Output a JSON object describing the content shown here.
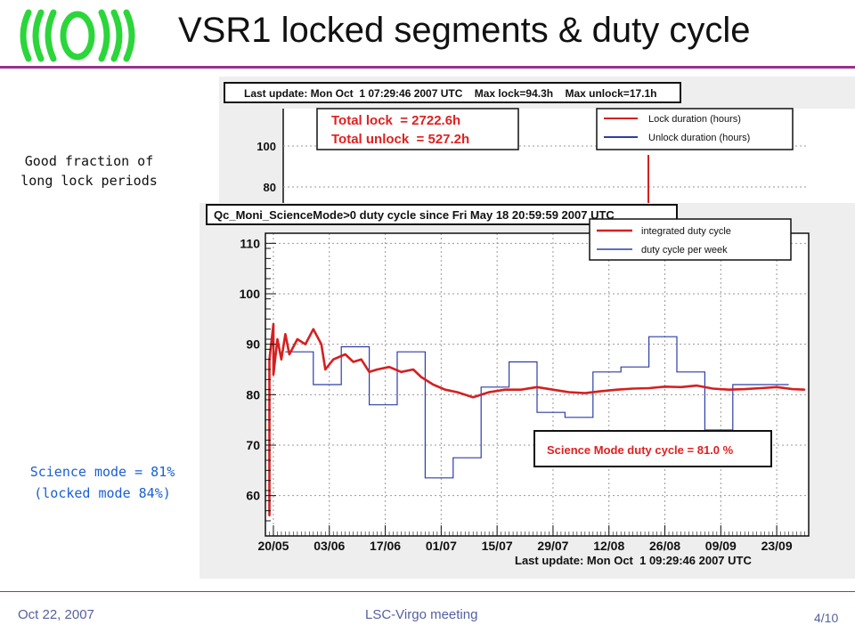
{
  "slide": {
    "title": "VSR1 locked segments & duty cycle",
    "note_lock": [
      "Good fraction of",
      "long lock periods"
    ],
    "note_science": [
      "Science mode = 81%",
      "(locked mode 84%)"
    ],
    "footer_date": "Oct 22, 2007",
    "footer_meeting": "LSC-Virgo meeting",
    "footer_page": "4/10",
    "accent_color": "#9b2f8e",
    "logo_color": "#2bd63a"
  },
  "lock_panel": {
    "header": "Last update: Mon Oct  1 07:29:46 2007 UTC    Max lock=94.3h    Max unlock=17.1h",
    "totals": [
      "Total lock  = 2722.6h",
      "Total unlock  = 527.2h"
    ],
    "legend": [
      "Lock duration (hours)",
      "Unlock duration (hours)"
    ],
    "yticks": [
      "100",
      "80"
    ],
    "colors": {
      "lock": "#d42020",
      "unlock": "#2d3da8"
    }
  },
  "chart_data": {
    "type": "line",
    "title": "Qc_Moni_ScienceMode>0 duty cycle since Fri May 18 20:59:59 2007 UTC",
    "subtitle": "Last update: Mon Oct  1 09:29:46 2007 UTC",
    "annotation": "Science Mode duty cycle = 81.0 %",
    "xticks": [
      "20/05",
      "03/06",
      "17/06",
      "01/07",
      "15/07",
      "29/07",
      "12/08",
      "26/08",
      "09/09",
      "23/09"
    ],
    "xlim": [
      "2007-05-18",
      "2007-10-01"
    ],
    "ylim": [
      52,
      112
    ],
    "yticks": [
      60,
      70,
      80,
      90,
      100,
      110
    ],
    "grid": true,
    "legend_position": "top-right",
    "series": [
      {
        "name": "integrated duty cycle",
        "color": "#d42020",
        "style": "thick",
        "points": [
          [
            "2007-05-19",
            56
          ],
          [
            "2007-05-19",
            87
          ],
          [
            "2007-05-20",
            94
          ],
          [
            "2007-05-20",
            84
          ],
          [
            "2007-05-21",
            91
          ],
          [
            "2007-05-22",
            87
          ],
          [
            "2007-05-23",
            92
          ],
          [
            "2007-05-24",
            88
          ],
          [
            "2007-05-26",
            91
          ],
          [
            "2007-05-28",
            90
          ],
          [
            "2007-05-30",
            93
          ],
          [
            "2007-06-01",
            90
          ],
          [
            "2007-06-02",
            85
          ],
          [
            "2007-06-04",
            87
          ],
          [
            "2007-06-07",
            88
          ],
          [
            "2007-06-09",
            86.5
          ],
          [
            "2007-06-11",
            87
          ],
          [
            "2007-06-13",
            84.5
          ],
          [
            "2007-06-15",
            85
          ],
          [
            "2007-06-18",
            85.5
          ],
          [
            "2007-06-21",
            84.5
          ],
          [
            "2007-06-24",
            85
          ],
          [
            "2007-06-26",
            83.5
          ],
          [
            "2007-06-29",
            82
          ],
          [
            "2007-07-02",
            81
          ],
          [
            "2007-07-05",
            80.5
          ],
          [
            "2007-07-09",
            79.5
          ],
          [
            "2007-07-13",
            80.5
          ],
          [
            "2007-07-17",
            81
          ],
          [
            "2007-07-21",
            81
          ],
          [
            "2007-07-25",
            81.5
          ],
          [
            "2007-07-29",
            81
          ],
          [
            "2007-08-02",
            80.5
          ],
          [
            "2007-08-06",
            80.3
          ],
          [
            "2007-08-10",
            80.7
          ],
          [
            "2007-08-14",
            81
          ],
          [
            "2007-08-18",
            81.2
          ],
          [
            "2007-08-22",
            81.3
          ],
          [
            "2007-08-26",
            81.6
          ],
          [
            "2007-08-30",
            81.5
          ],
          [
            "2007-09-03",
            81.8
          ],
          [
            "2007-09-07",
            81.2
          ],
          [
            "2007-09-11",
            81
          ],
          [
            "2007-09-15",
            81.1
          ],
          [
            "2007-09-19",
            81.3
          ],
          [
            "2007-09-23",
            81.5
          ],
          [
            "2007-09-27",
            81.1
          ],
          [
            "2007-09-30",
            81
          ]
        ]
      },
      {
        "name": "duty cycle per week",
        "color": "#2d3da8",
        "style": "step",
        "steps": [
          [
            "2007-05-23",
            "2007-05-30",
            88.5
          ],
          [
            "2007-05-30",
            "2007-06-06",
            82
          ],
          [
            "2007-06-06",
            "2007-06-13",
            89.5
          ],
          [
            "2007-06-13",
            "2007-06-20",
            78
          ],
          [
            "2007-06-20",
            "2007-06-27",
            88.5
          ],
          [
            "2007-06-27",
            "2007-07-04",
            63.5
          ],
          [
            "2007-07-04",
            "2007-07-11",
            67.5
          ],
          [
            "2007-07-11",
            "2007-07-18",
            81.5
          ],
          [
            "2007-07-18",
            "2007-07-25",
            86.5
          ],
          [
            "2007-07-25",
            "2007-08-01",
            76.5
          ],
          [
            "2007-08-01",
            "2007-08-08",
            75.5
          ],
          [
            "2007-08-08",
            "2007-08-15",
            84.5
          ],
          [
            "2007-08-15",
            "2007-08-22",
            85.5
          ],
          [
            "2007-08-22",
            "2007-08-29",
            91.5
          ],
          [
            "2007-08-29",
            "2007-09-05",
            84.5
          ],
          [
            "2007-09-05",
            "2007-09-12",
            73
          ],
          [
            "2007-09-12",
            "2007-09-19",
            82
          ],
          [
            "2007-09-19",
            "2007-09-26",
            82
          ]
        ]
      }
    ]
  }
}
